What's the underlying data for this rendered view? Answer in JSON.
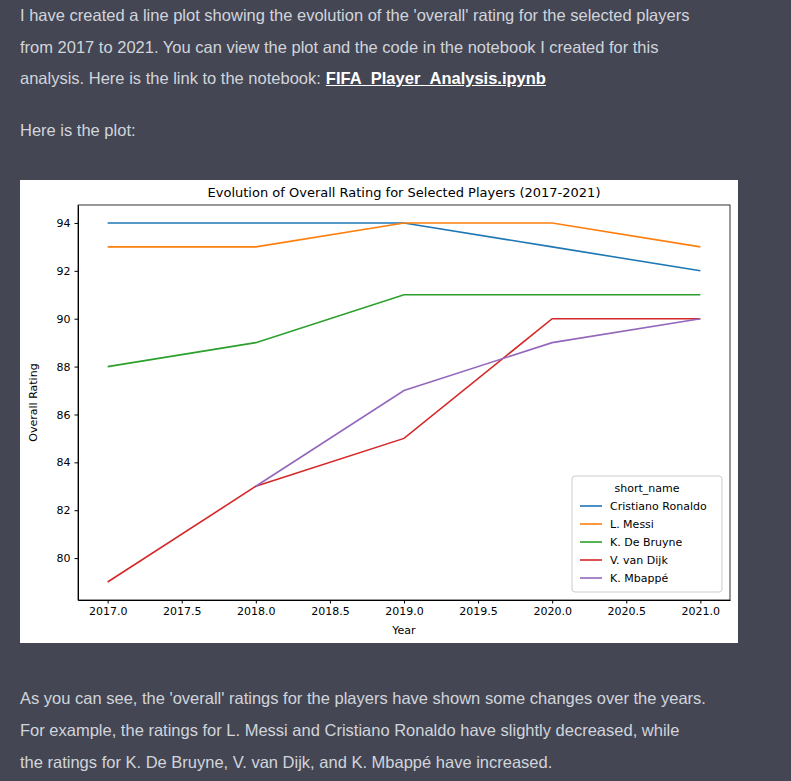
{
  "intro": {
    "lines": [
      "I have created a line plot showing the evolution of the 'overall' rating for the selected players",
      "from 2017 to 2021. You can view the plot and the code in the notebook I created for this",
      "analysis. Here is the link to the notebook:"
    ],
    "link": "FIFA_Player_Analysis.ipynb"
  },
  "plot_intro": "Here is the plot:",
  "chart_data": {
    "type": "line",
    "title": "Evolution of Overall Rating for Selected Players (2017-2021)",
    "x_label": "Year",
    "y_label": "Overall Rating",
    "x": [
      2017,
      2018,
      2019,
      2020,
      2021
    ],
    "series": [
      {
        "name": "Cristiano Ronaldo",
        "color": "#1f77b4",
        "values": [
          94,
          94,
          94,
          93,
          92
        ]
      },
      {
        "name": "L. Messi",
        "color": "#ff7f0e",
        "values": [
          93,
          93,
          94,
          94,
          93
        ]
      },
      {
        "name": "K. De Bruyne",
        "color": "#2ca02c",
        "values": [
          88,
          89,
          91,
          91,
          91
        ]
      },
      {
        "name": "V. van Dijk",
        "color": "#d62728",
        "values": [
          79,
          83,
          85,
          90,
          90
        ]
      },
      {
        "name": "K. Mbappé",
        "color": "#9467bd",
        "values": [
          null,
          83,
          87,
          89,
          90
        ]
      }
    ],
    "xlim": [
      2016.8,
      2021.2
    ],
    "xticks": [
      {
        "value": 2017,
        "label": "2017.0"
      },
      2017.5,
      {
        "value": 2018,
        "label": "2018.0"
      },
      2018.5,
      {
        "value": 2019,
        "label": "2019.0"
      },
      2019.5,
      {
        "value": 2020,
        "label": "2020.0"
      },
      2020.5,
      {
        "value": 2021,
        "label": "2021.0"
      }
    ],
    "ylim": [
      78.25,
      94.75
    ],
    "yticks": [
      80,
      82,
      84,
      86,
      88,
      90,
      92,
      94
    ],
    "grid": false,
    "legend": "lower right",
    "legend_title": "short_name"
  },
  "conclusion": {
    "lines": [
      "As you can see, the 'overall' ratings for the players have shown some changes over the years.",
      "For example, the ratings for L. Messi and Cristiano Ronaldo have slightly decreased, while",
      "the ratings for K. De Bruyne, V. van Dijk, and K. Mbappé have increased."
    ]
  }
}
